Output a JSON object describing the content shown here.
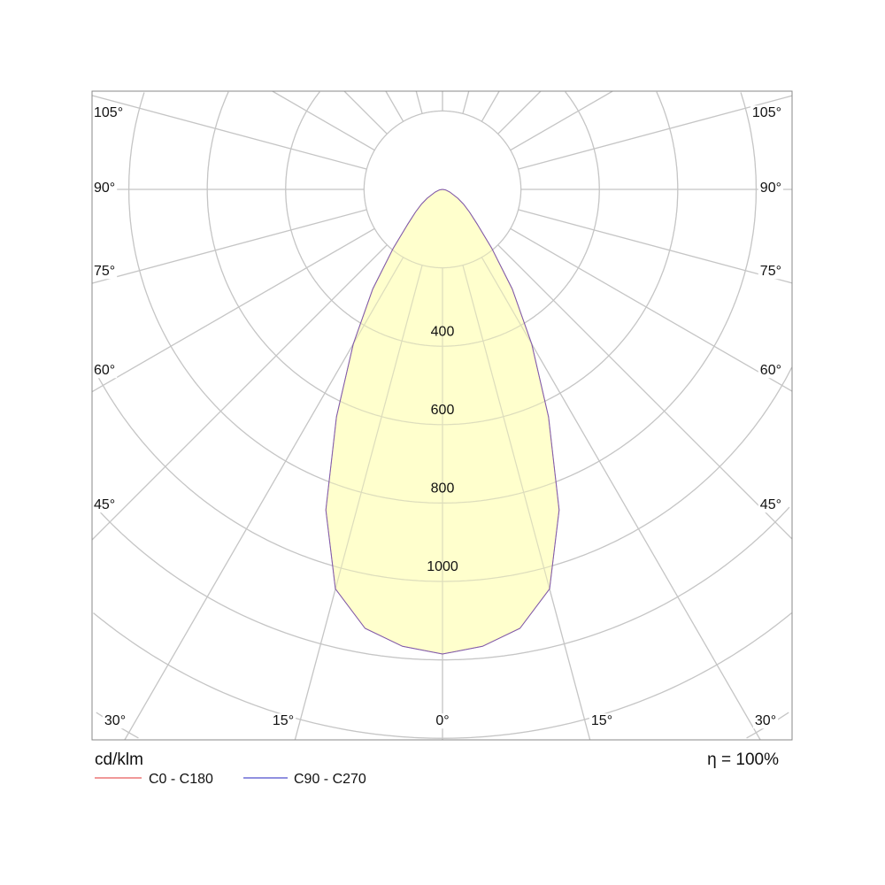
{
  "chart_data": {
    "type": "polar",
    "unit_label": "cd/klm",
    "efficiency_label": "η = 100%",
    "radial_ticks": [
      400,
      600,
      800,
      1000
    ],
    "radial_rings": [
      200,
      400,
      600,
      800,
      1000,
      1200,
      1400,
      1600,
      1800,
      2000,
      2200
    ],
    "angle_step_deg": 15,
    "angle_labels_left": [
      "105°",
      "90°",
      "75°",
      "60°",
      "45°"
    ],
    "angle_labels_right": [
      "105°",
      "90°",
      "75°",
      "60°",
      "45°"
    ],
    "angle_labels_bottom": [
      "30°",
      "15°",
      "0°",
      "15°",
      "30°"
    ],
    "legend": [
      {
        "name": "C0 - C180",
        "color": "#e03030"
      },
      {
        "name": "C90 - C270",
        "color": "#2020c0"
      }
    ],
    "fill_color": "#ffffc4",
    "curve_color": "#7a5cb0",
    "grid": true,
    "series": [
      {
        "name": "C0 - C180",
        "angles_deg": [
          0,
          5,
          10,
          15,
          20,
          25,
          30,
          35,
          40,
          45,
          50,
          55,
          60,
          70,
          80,
          90
        ],
        "values": [
          1185,
          1170,
          1137,
          1055,
          870,
          640,
          455,
          310,
          195,
          125,
          90,
          65,
          45,
          20,
          8,
          0
        ]
      },
      {
        "name": "C90 - C270",
        "angles_deg": [
          0,
          5,
          10,
          15,
          20,
          25,
          30,
          35,
          40,
          45,
          50,
          55,
          60,
          70,
          80,
          90
        ],
        "values": [
          1185,
          1170,
          1137,
          1055,
          870,
          640,
          455,
          310,
          195,
          125,
          90,
          65,
          45,
          20,
          8,
          0
        ]
      }
    ]
  }
}
